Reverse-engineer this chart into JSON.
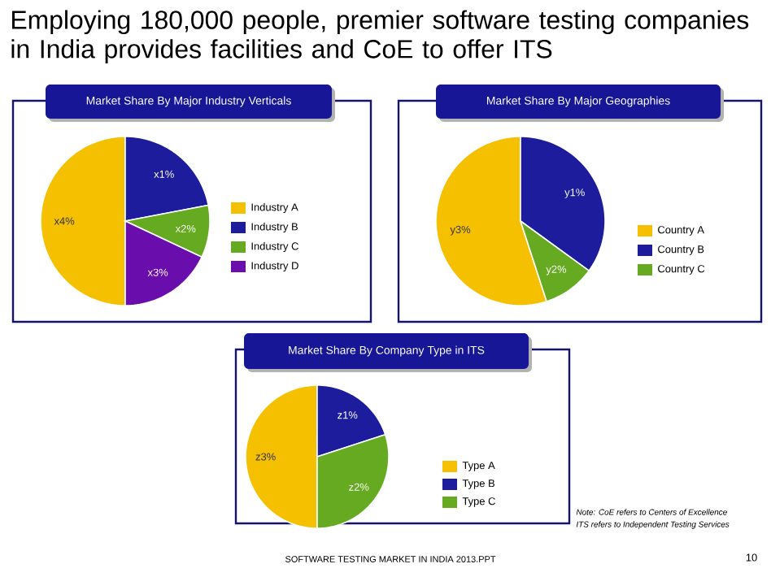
{
  "chart_data": [
    {
      "type": "pie",
      "title": "Market Share By Major Industry Verticals",
      "categories": [
        "Industry A",
        "Industry B",
        "Industry C",
        "Industry D"
      ],
      "values": [
        50,
        22,
        10,
        18
      ],
      "colors": [
        "#f5c000",
        "#1c1c9c",
        "#66aa22",
        "#6a0dad"
      ],
      "value_labels": [
        "x4%",
        "x1%",
        "x2%",
        "x3%"
      ],
      "legend": "right",
      "annotations": [
        "Employing 180,000 people, premier software testing companies in India provides facilities and CoE to offer ITS"
      ]
    },
    {
      "type": "pie",
      "title": "Market Share By Major Geographies",
      "categories": [
        "Country A",
        "Country B",
        "Country C"
      ],
      "values": [
        55,
        35,
        10
      ],
      "colors": [
        "#f5c000",
        "#1c1c9c",
        "#66aa22"
      ],
      "value_labels": [
        "y3%",
        "y1%",
        "y2%"
      ],
      "legend": "right"
    },
    {
      "type": "pie",
      "title": "Market Share By Company Type in ITS",
      "categories": [
        "Type A",
        "Type B",
        "Type C"
      ],
      "values": [
        50,
        20,
        30
      ],
      "colors": [
        "#f5c000",
        "#1c1c9c",
        "#66aa22"
      ],
      "value_labels": [
        "z3%",
        "z1%",
        "z2%"
      ],
      "legend": "right",
      "annotations": [
        "Note: CoE refers to Centers of Excellence",
        "ITS refers to Independent Testing Services",
        "SOFTWARE TESTING MARKET IN INDIA 2013.PPT",
        "10"
      ]
    }
  ]
}
